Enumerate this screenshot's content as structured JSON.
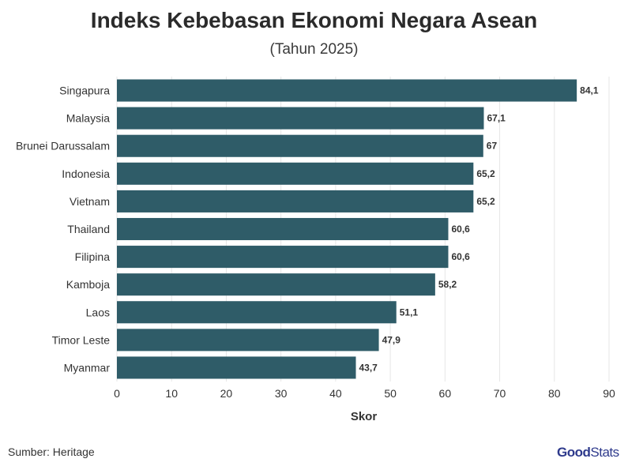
{
  "header": {
    "title": "Indeks Kebebasan Ekonomi Negara Asean",
    "subtitle": "(Tahun 2025)"
  },
  "footer": {
    "source": "Sumber: Heritage",
    "logo_bold": "Good",
    "logo_light": "Stats"
  },
  "colors": {
    "bar": "#2f5c68",
    "grid": "#e6e6e6",
    "text": "#333333"
  },
  "chart_data": {
    "type": "bar",
    "orientation": "horizontal",
    "categories": [
      "Singapura",
      "Malaysia",
      "Brunei Darussalam",
      "Indonesia",
      "Vietnam",
      "Thailand",
      "Filipina",
      "Kamboja",
      "Laos",
      "Timor Leste",
      "Myanmar"
    ],
    "values": [
      84.1,
      67.1,
      67,
      65.2,
      65.2,
      60.6,
      60.6,
      58.2,
      51.1,
      47.9,
      43.7
    ],
    "value_labels": [
      "84,1",
      "67,1",
      "67",
      "65,2",
      "65,2",
      "60,6",
      "60,6",
      "58,2",
      "51,1",
      "47,9",
      "43,7"
    ],
    "xlabel": "Skor",
    "xlim": [
      0,
      90
    ],
    "xticks": [
      0,
      10,
      20,
      30,
      40,
      50,
      60,
      70,
      80,
      90
    ],
    "grid": true
  }
}
